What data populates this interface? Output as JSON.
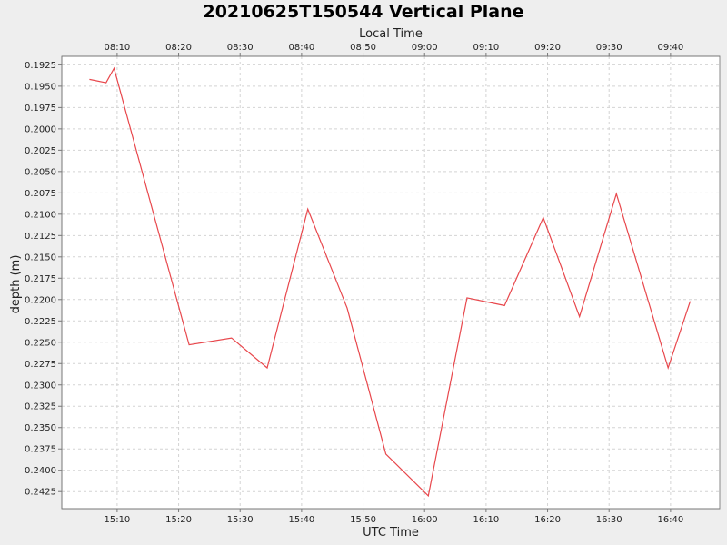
{
  "chart_data": {
    "type": "line",
    "title": "20210625T150544 Vertical Plane",
    "top_axis_label": "Local Time",
    "xlabel": "UTC Time",
    "ylabel": "depth (m)",
    "y_inverted": true,
    "ylim": [
      0.1915,
      0.2445
    ],
    "x_range_utc": [
      "15:01",
      "16:48"
    ],
    "y_ticks": [
      "0.1925",
      "0.1950",
      "0.1975",
      "0.2000",
      "0.2025",
      "0.2050",
      "0.2075",
      "0.2100",
      "0.2125",
      "0.2150",
      "0.2175",
      "0.2200",
      "0.2225",
      "0.2250",
      "0.2275",
      "0.2300",
      "0.2325",
      "0.2350",
      "0.2375",
      "0.2400",
      "0.2425"
    ],
    "x_ticks_utc": [
      "15:10",
      "15:20",
      "15:30",
      "15:40",
      "15:50",
      "16:00",
      "16:10",
      "16:20",
      "16:30",
      "16:40"
    ],
    "x_ticks_local": [
      "08:10",
      "08:20",
      "08:30",
      "08:40",
      "08:50",
      "09:00",
      "09:10",
      "09:20",
      "09:30",
      "09:40"
    ],
    "grid": true,
    "series": [
      {
        "color": "#e8474c",
        "x": [
          "15:05.5",
          "15:08.2",
          "15:09.5",
          "15:21.7",
          "15:28.6",
          "15:34.4",
          "15:41.0",
          "15:47.4",
          "15:53.7",
          "16:00.6",
          "16:06.9",
          "16:13.0",
          "16:19.3",
          "16:25.2",
          "16:31.2",
          "16:39.6",
          "16:43.2"
        ],
        "y": [
          0.1942,
          0.1946,
          0.1929,
          0.2253,
          0.2245,
          0.228,
          0.2094,
          0.221,
          0.2381,
          0.243,
          0.2198,
          0.2207,
          0.2104,
          0.222,
          0.2076,
          0.228,
          0.2202
        ]
      }
    ]
  }
}
